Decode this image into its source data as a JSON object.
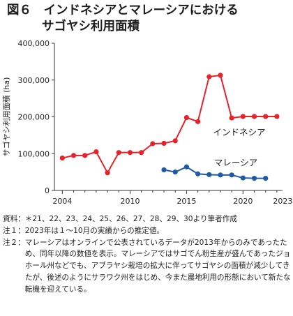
{
  "figure": {
    "title_line1": "図６　インドネシアとマレーシアにおける",
    "title_line2": "サゴヤシ利用面積"
  },
  "chart_data": {
    "type": "line",
    "ylabel": "サゴヤシ利用面積 (ha)",
    "xlabel": "",
    "ylim": [
      0,
      400000
    ],
    "xlim": [
      2003.3,
      2023.5
    ],
    "yticks": [
      0,
      100000,
      200000,
      300000,
      400000
    ],
    "ytick_labels": [
      "0",
      "100,000",
      "200,000",
      "300,000",
      "400,000"
    ],
    "xticks": [
      2004,
      2010,
      2015,
      2020
    ],
    "xtick_labels": [
      "2004",
      "2010",
      "2015",
      "2020"
    ],
    "x_end_label": "2023年",
    "grid": false,
    "series": [
      {
        "name": "インドネシア",
        "color": "#e8212a",
        "x": [
          2004,
          2005,
          2006,
          2007,
          2008,
          2009,
          2010,
          2011,
          2012,
          2013,
          2014,
          2015,
          2016,
          2017,
          2018,
          2019,
          2020,
          2021,
          2022,
          2023
        ],
        "y": [
          88000,
          95000,
          95000,
          105000,
          48000,
          103000,
          103000,
          103000,
          127000,
          128000,
          135000,
          198000,
          187000,
          309000,
          313000,
          197000,
          201000,
          201000,
          201000,
          201000
        ]
      },
      {
        "name": "マレーシア",
        "color": "#1f5aa6",
        "x": [
          2013,
          2014,
          2015,
          2016,
          2017,
          2018,
          2019,
          2020,
          2021,
          2022
        ],
        "y": [
          56000,
          50000,
          64000,
          45000,
          43000,
          42000,
          42000,
          34000,
          33000,
          33000
        ]
      }
    ]
  },
  "notes": [
    {
      "label": "資料：",
      "text": "＊21、22、23、24、25、26、27、28、29、30より筆者作成"
    },
    {
      "label": "注１：",
      "text": "2023年は１～10月の実績からの推定値。"
    },
    {
      "label": "注２：",
      "text": "マレーシアはオンラインで公表されているデータが2013年からのみであったため、同年以降の数値を表示。マレーシアではサゴでん粉生産が盛んであったジョホール州などでも、アブラヤシ栽培の拡大に伴ってサゴヤシの面積が減少してきたが、後述のようにサラワク州をはじめ、今また農地利用の形態において新たな転機を迎えている。"
    }
  ]
}
